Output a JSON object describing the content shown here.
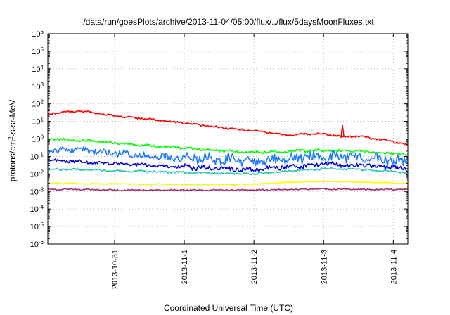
{
  "chart_data": {
    "type": "line",
    "title": "/data/run/goesPlots/archive/2013-11-04/05:00/flux/../flux/5daysMoonFluxes.txt",
    "xlabel": "Coordinated Universal Time (UTC)",
    "ylabel": "protons/cm2-s-sr-MeV",
    "ylabel_parts": {
      "base": "protons/cm",
      "sup": "2",
      "rest": "-s-sr-MeV"
    },
    "y_scale": "log",
    "ylim": [
      1e-06,
      1000000.0
    ],
    "y_ticks": [
      {
        "value": 1e-06,
        "exp": "-6"
      },
      {
        "value": 1e-05,
        "exp": "-5"
      },
      {
        "value": 0.0001,
        "exp": "-4"
      },
      {
        "value": 0.001,
        "exp": "-3"
      },
      {
        "value": 0.01,
        "exp": "-2"
      },
      {
        "value": 0.1,
        "exp": "-1"
      },
      {
        "value": 1,
        "exp": "0"
      },
      {
        "value": 10,
        "exp": "1"
      },
      {
        "value": 100,
        "exp": "2"
      },
      {
        "value": 1000,
        "exp": "3"
      },
      {
        "value": 10000,
        "exp": "4"
      },
      {
        "value": 100000,
        "exp": "5"
      },
      {
        "value": 1000000,
        "exp": "6"
      }
    ],
    "tick_base": "10",
    "xlim": [
      "2013-10-30 01:00",
      "2013-11-04 05:00"
    ],
    "x_ticks": [
      "2013-10-31",
      "2013-11-1",
      "2013-11-2",
      "2013-11-3",
      "2013-11-4"
    ],
    "x_tick_dates": [
      "2013-10-31 00:00",
      "2013-11-01 00:00",
      "2013-11-02 00:00",
      "2013-11-03 00:00",
      "2013-11-04 00:00"
    ],
    "grid": true,
    "legend": "none",
    "series": [
      {
        "color": "#ff0000",
        "x": [
          "2013-10-30 01:00",
          "2013-10-30 06:00",
          "2013-10-30 12:00",
          "2013-10-30 18:00",
          "2013-10-31 00:00",
          "2013-10-31 06:00",
          "2013-10-31 12:00",
          "2013-10-31 18:00",
          "2013-11-01 00:00",
          "2013-11-01 06:00",
          "2013-11-01 12:00",
          "2013-11-01 18:00",
          "2013-11-02 00:00",
          "2013-11-02 06:00",
          "2013-11-02 12:00",
          "2013-11-02 18:00",
          "2013-11-03 00:00",
          "2013-11-03 06:00",
          "2013-11-03 12:00",
          "2013-11-03 18:00",
          "2013-11-04 00:00",
          "2013-11-04 05:00"
        ],
        "y": [
          25,
          35,
          38,
          30,
          20,
          17,
          13,
          10,
          8,
          6,
          4.5,
          3.5,
          3,
          2.2,
          1.6,
          1.9,
          2,
          1.3,
          1.4,
          1,
          0.7,
          0.45
        ],
        "spikes": [
          {
            "x": "2013-11-03 06:30",
            "y": 6
          }
        ]
      },
      {
        "color": "#00ff00",
        "x": [
          "2013-10-30 01:00",
          "2013-10-30 12:00",
          "2013-10-31 00:00",
          "2013-10-31 12:00",
          "2013-11-01 00:00",
          "2013-11-01 12:00",
          "2013-11-02 00:00",
          "2013-11-02 12:00",
          "2013-11-03 00:00",
          "2013-11-03 12:00",
          "2013-11-04 00:00",
          "2013-11-04 05:00"
        ],
        "y": [
          1,
          0.8,
          0.6,
          0.4,
          0.3,
          0.22,
          0.17,
          0.2,
          0.22,
          0.2,
          0.15,
          0.12
        ]
      },
      {
        "color": "#1e7bff",
        "x": [
          "2013-10-30 01:00",
          "2013-10-30 12:00",
          "2013-10-31 00:00",
          "2013-10-31 12:00",
          "2013-11-01 00:00",
          "2013-11-01 12:00",
          "2013-11-02 00:00",
          "2013-11-02 12:00",
          "2013-11-03 00:00",
          "2013-11-03 12:00",
          "2013-11-04 00:00",
          "2013-11-04 05:00"
        ],
        "y": [
          0.2,
          0.25,
          0.15,
          0.1,
          0.08,
          0.07,
          0.05,
          0.08,
          0.1,
          0.09,
          0.06,
          0.05
        ]
      },
      {
        "color": "#0000dd",
        "x": [
          "2013-10-30 01:00",
          "2013-10-30 12:00",
          "2013-10-31 00:00",
          "2013-10-31 12:00",
          "2013-11-01 00:00",
          "2013-11-01 12:00",
          "2013-11-02 00:00",
          "2013-11-02 12:00",
          "2013-11-03 00:00",
          "2013-11-03 12:00",
          "2013-11-04 00:00",
          "2013-11-04 05:00"
        ],
        "y": [
          0.06,
          0.05,
          0.04,
          0.03,
          0.025,
          0.02,
          0.018,
          0.025,
          0.035,
          0.03,
          0.025,
          0.02
        ]
      },
      {
        "color": "#20c8a8",
        "x": [
          "2013-10-30 01:00",
          "2013-10-30 12:00",
          "2013-10-31 00:00",
          "2013-10-31 12:00",
          "2013-11-01 00:00",
          "2013-11-01 12:00",
          "2013-11-02 00:00",
          "2013-11-02 12:00",
          "2013-11-03 00:00",
          "2013-11-03 12:00",
          "2013-11-04 00:00",
          "2013-11-04 05:00"
        ],
        "y": [
          0.018,
          0.018,
          0.015,
          0.014,
          0.012,
          0.011,
          0.01,
          0.015,
          0.02,
          0.018,
          0.014,
          0.012
        ]
      },
      {
        "color": "#ffff00",
        "x": [
          "2013-10-30 01:00",
          "2013-10-30 12:00",
          "2013-10-31 00:00",
          "2013-10-31 12:00",
          "2013-11-01 00:00",
          "2013-11-01 12:00",
          "2013-11-02 00:00",
          "2013-11-02 12:00",
          "2013-11-03 00:00",
          "2013-11-03 12:00",
          "2013-11-04 00:00",
          "2013-11-04 05:00"
        ],
        "y": [
          0.003,
          0.0028,
          0.0027,
          0.0026,
          0.0025,
          0.0025,
          0.0026,
          0.0033,
          0.0038,
          0.0035,
          0.003,
          0.003
        ]
      },
      {
        "color": "#a0306e",
        "x": [
          "2013-10-30 01:00",
          "2013-10-30 12:00",
          "2013-10-31 00:00",
          "2013-10-31 12:00",
          "2013-11-01 00:00",
          "2013-11-01 12:00",
          "2013-11-02 00:00",
          "2013-11-02 12:00",
          "2013-11-03 00:00",
          "2013-11-03 12:00",
          "2013-11-04 00:00",
          "2013-11-04 05:00"
        ],
        "y": [
          0.0013,
          0.0013,
          0.0012,
          0.0012,
          0.0012,
          0.0012,
          0.0012,
          0.0013,
          0.0014,
          0.0013,
          0.0013,
          0.0013
        ]
      }
    ]
  }
}
